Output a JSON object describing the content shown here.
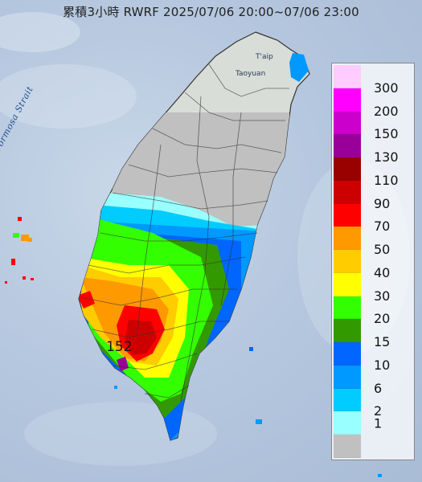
{
  "title": "累積3小時 RWRF 2025/07/06 20:00~07/06 23:00",
  "place_names": {
    "taipei": "T'aip",
    "taoyuan": "Taoyuan",
    "strait": "Formosa Strait"
  },
  "peak_value": "152",
  "legend": [
    {
      "label": "300",
      "color": "#ffccff"
    },
    {
      "label": "200",
      "color": "#ff00ff"
    },
    {
      "label": "150",
      "color": "#cc00cc"
    },
    {
      "label": "130",
      "color": "#990099"
    },
    {
      "label": "110",
      "color": "#990000"
    },
    {
      "label": "90",
      "color": "#cc0000"
    },
    {
      "label": "70",
      "color": "#ff0000"
    },
    {
      "label": "50",
      "color": "#ff9900"
    },
    {
      "label": "40",
      "color": "#ffcc00"
    },
    {
      "label": "30",
      "color": "#ffff00"
    },
    {
      "label": "20",
      "color": "#33ff00"
    },
    {
      "label": "15",
      "color": "#339900"
    },
    {
      "label": "10",
      "color": "#0066ff"
    },
    {
      "label": "6",
      "color": "#0099ff"
    },
    {
      "label": "2",
      "color": "#00ccff"
    },
    {
      "label": "1",
      "color": "#99ffff"
    },
    {
      "label": "",
      "color": "#c0c0c0"
    }
  ]
}
